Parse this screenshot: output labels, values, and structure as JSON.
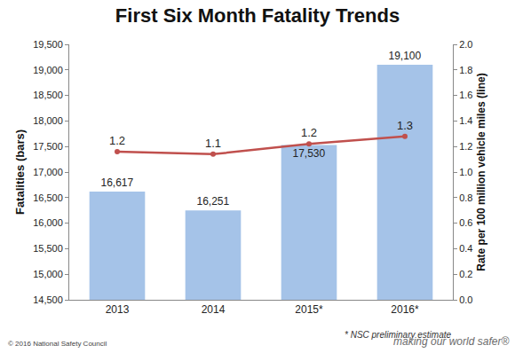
{
  "chart_data": {
    "type": "bar",
    "title": "First Six Month Fatality Trends",
    "categories": [
      "2013",
      "2014",
      "2015*",
      "2016*"
    ],
    "y_label": "Fatalities (bars)",
    "y2_label": "Rate per 100 million vehicle miles (line)",
    "series": [
      {
        "type": "bar",
        "color": "#a5c3e8",
        "axis": "y",
        "values": [
          16617,
          16251,
          17530,
          19100
        ],
        "value_labels": [
          "16,617",
          "16,251",
          "17,530",
          "19,100"
        ]
      },
      {
        "type": "line",
        "color": "#c0504d",
        "marker": "circle",
        "axis": "y2",
        "values": [
          1.16,
          1.14,
          1.22,
          1.28
        ],
        "value_labels": [
          "1.2",
          "1.1",
          "1.2",
          "1.3"
        ]
      }
    ],
    "ylim": [
      14500,
      19500
    ],
    "yticks": [
      {
        "value": 14500,
        "label": "14,500"
      },
      {
        "value": 15000,
        "label": "15,000"
      },
      {
        "value": 15500,
        "label": "15,500"
      },
      {
        "value": 16000,
        "label": "16,000"
      },
      {
        "value": 16500,
        "label": "16,500"
      },
      {
        "value": 17000,
        "label": "17,000"
      },
      {
        "value": 17500,
        "label": "17,500"
      },
      {
        "value": 18000,
        "label": "18,000"
      },
      {
        "value": 18500,
        "label": "18,500"
      },
      {
        "value": 19000,
        "label": "19,000"
      },
      {
        "value": 19500,
        "label": "19,500"
      }
    ],
    "y2lim": [
      0,
      2
    ],
    "y2ticks": [
      {
        "value": 0,
        "label": "0.0"
      },
      0.2,
      0.4,
      0.6,
      0.8,
      {
        "value": 1,
        "label": "1.0"
      },
      1.2,
      1.4,
      1.6,
      1.8,
      {
        "value": 2,
        "label": "2.0"
      }
    ],
    "grid": false,
    "data_labels": true,
    "annotations": [
      "* NSC preliminary estimate",
      "© 2016 National Safety Council",
      "making our world safer®"
    ]
  }
}
